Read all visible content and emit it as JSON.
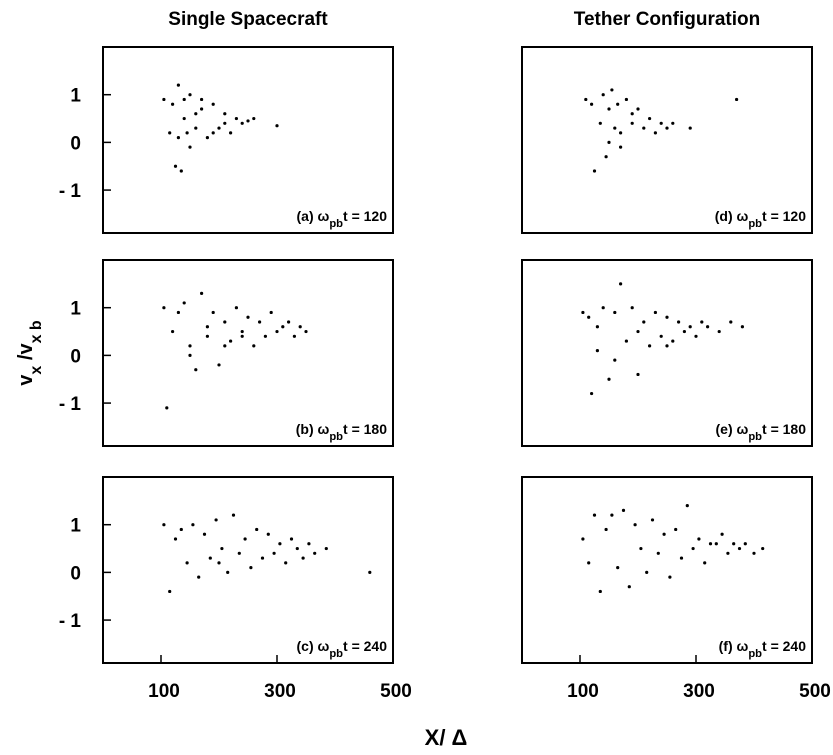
{
  "chart_data": [
    {
      "type": "scatter",
      "title": "Single Spacecraft",
      "annotation": [
        {
          "text": "(a) ω"
        },
        {
          "text": "pb",
          "sub": true
        },
        {
          "text": "t = 120"
        }
      ],
      "xlim": [
        0,
        500
      ],
      "ylim": [
        -1.9,
        2
      ],
      "yticks": [
        1,
        0,
        {
          "value": -1,
          "label": "- 1"
        }
      ],
      "color": "#000000",
      "x": [
        105,
        115,
        120,
        125,
        130,
        135,
        140,
        145,
        150,
        160,
        170,
        180,
        190,
        200,
        210,
        220,
        230,
        240,
        250,
        260,
        300,
        130,
        150,
        170,
        190,
        210,
        140,
        160
      ],
      "y": [
        0.9,
        0.2,
        0.8,
        -0.5,
        1.2,
        -0.6,
        0.9,
        0.2,
        1.0,
        0.3,
        0.7,
        0.1,
        0.8,
        0.3,
        0.6,
        0.2,
        0.5,
        0.4,
        0.45,
        0.5,
        0.35,
        0.1,
        -0.1,
        0.9,
        0.2,
        0.4,
        0.5,
        0.6
      ]
    },
    {
      "type": "scatter",
      "ylabel": [
        {
          "text": "v"
        },
        {
          "text": "x",
          "sub": true
        },
        {
          "text": " /v"
        },
        {
          "text": "x b",
          "sub": true
        }
      ],
      "annotation": [
        {
          "text": "(b) ω"
        },
        {
          "text": "pb",
          "sub": true
        },
        {
          "text": "t = 180"
        }
      ],
      "xlim": [
        0,
        500
      ],
      "ylim": [
        -1.9,
        2
      ],
      "yticks": [
        1,
        0,
        {
          "value": -1,
          "label": "- 1"
        }
      ],
      "color": "#000000",
      "x": [
        105,
        110,
        120,
        130,
        140,
        150,
        160,
        170,
        180,
        190,
        200,
        210,
        220,
        230,
        240,
        250,
        260,
        270,
        280,
        290,
        300,
        310,
        320,
        330,
        340,
        350,
        150,
        180,
        210,
        240
      ],
      "y": [
        1.0,
        -1.1,
        0.5,
        0.9,
        1.1,
        0.2,
        -0.3,
        1.3,
        0.4,
        0.9,
        -0.2,
        0.7,
        0.3,
        1.0,
        0.5,
        0.8,
        0.2,
        0.7,
        0.4,
        0.9,
        0.5,
        0.6,
        0.7,
        0.4,
        0.6,
        0.5,
        0.0,
        0.6,
        0.2,
        0.4
      ]
    },
    {
      "type": "scatter",
      "xlabel": "X/ Δ",
      "annotation": [
        {
          "text": "(c) ω"
        },
        {
          "text": "pb",
          "sub": true
        },
        {
          "text": "t = 240"
        }
      ],
      "xlim": [
        0,
        500
      ],
      "ylim": [
        -1.9,
        2
      ],
      "xticks": [
        100,
        300,
        500
      ],
      "yticks": [
        1,
        0,
        {
          "value": -1,
          "label": "- 1"
        }
      ],
      "color": "#000000",
      "x": [
        105,
        115,
        125,
        135,
        145,
        155,
        165,
        175,
        185,
        195,
        205,
        215,
        225,
        235,
        245,
        255,
        265,
        275,
        285,
        295,
        305,
        315,
        325,
        335,
        345,
        355,
        365,
        385,
        460,
        200
      ],
      "y": [
        1.0,
        -0.4,
        0.7,
        0.9,
        0.2,
        1.0,
        -0.1,
        0.8,
        0.3,
        1.1,
        0.5,
        0.0,
        1.2,
        0.4,
        0.7,
        0.1,
        0.9,
        0.3,
        0.8,
        0.4,
        0.6,
        0.2,
        0.7,
        0.5,
        0.3,
        0.6,
        0.4,
        0.5,
        0.0,
        0.2
      ]
    },
    {
      "type": "scatter",
      "title": "Tether Configuration",
      "annotation": [
        {
          "text": "(d) ω"
        },
        {
          "text": "pb",
          "sub": true
        },
        {
          "text": "t = 120"
        }
      ],
      "xlim": [
        0,
        500
      ],
      "ylim": [
        -1.9,
        2
      ],
      "color": "#000000",
      "x": [
        110,
        120,
        125,
        135,
        140,
        145,
        150,
        155,
        160,
        165,
        170,
        180,
        190,
        200,
        210,
        220,
        230,
        240,
        250,
        260,
        290,
        370,
        150,
        170,
        190
      ],
      "y": [
        0.9,
        0.8,
        -0.6,
        0.4,
        1.0,
        -0.3,
        0.7,
        1.1,
        0.3,
        0.8,
        0.2,
        0.9,
        0.4,
        0.7,
        0.3,
        0.5,
        0.2,
        0.4,
        0.3,
        0.4,
        0.3,
        0.9,
        0.0,
        -0.1,
        0.6
      ]
    },
    {
      "type": "scatter",
      "annotation": [
        {
          "text": "(e) ω"
        },
        {
          "text": "pb",
          "sub": true
        },
        {
          "text": "t = 180"
        }
      ],
      "xlim": [
        0,
        500
      ],
      "ylim": [
        -1.9,
        2
      ],
      "color": "#000000",
      "x": [
        105,
        115,
        120,
        130,
        140,
        150,
        160,
        170,
        180,
        190,
        200,
        210,
        220,
        230,
        240,
        250,
        260,
        270,
        280,
        290,
        300,
        310,
        320,
        340,
        360,
        380,
        130,
        160,
        200,
        250
      ],
      "y": [
        0.9,
        0.8,
        -0.8,
        0.6,
        1.0,
        -0.5,
        0.9,
        1.5,
        0.3,
        1.0,
        -0.4,
        0.7,
        0.2,
        0.9,
        0.4,
        0.8,
        0.3,
        0.7,
        0.5,
        0.6,
        0.4,
        0.7,
        0.6,
        0.5,
        0.7,
        0.6,
        0.1,
        -0.1,
        0.5,
        0.2
      ]
    },
    {
      "type": "scatter",
      "annotation": [
        {
          "text": "(f) ω"
        },
        {
          "text": "pb",
          "sub": true
        },
        {
          "text": "t = 240"
        }
      ],
      "xlim": [
        0,
        500
      ],
      "ylim": [
        -1.9,
        2
      ],
      "xticks": [
        100,
        300,
        500
      ],
      "color": "#000000",
      "x": [
        105,
        115,
        125,
        135,
        145,
        155,
        165,
        175,
        185,
        195,
        205,
        215,
        225,
        235,
        245,
        255,
        265,
        275,
        285,
        295,
        305,
        315,
        325,
        335,
        345,
        355,
        365,
        375,
        385,
        400,
        415
      ],
      "y": [
        0.7,
        0.2,
        1.2,
        -0.4,
        0.9,
        1.2,
        0.1,
        1.3,
        -0.3,
        1.0,
        0.5,
        0.0,
        1.1,
        0.4,
        0.8,
        -0.1,
        0.9,
        0.3,
        1.4,
        0.5,
        0.7,
        0.2,
        0.6,
        0.6,
        0.8,
        0.4,
        0.6,
        0.5,
        0.6,
        0.4,
        0.5
      ]
    }
  ]
}
